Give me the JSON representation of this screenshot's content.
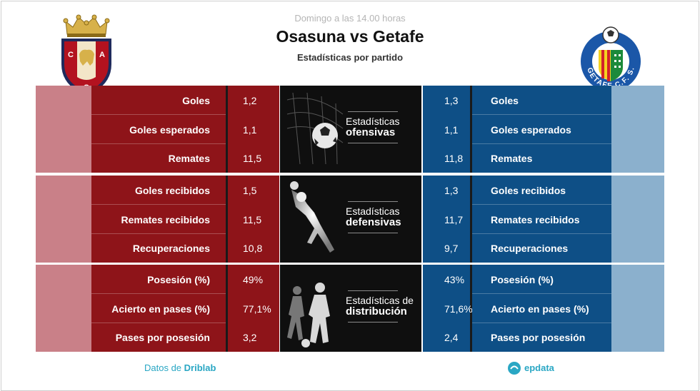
{
  "header": {
    "subtitle": "Domingo a las 14.00 horas",
    "title": "Osasuna vs Getafe",
    "description": "Estadísticas por partido"
  },
  "teams": {
    "home": {
      "name": "Osasuna",
      "color": "#8e1419",
      "logo_letters": [
        "C",
        "A",
        "O"
      ]
    },
    "away": {
      "name": "Getafe",
      "color": "#0e4f86",
      "logo_text": "GETAFE C.F. S.A.D."
    }
  },
  "blocks": [
    {
      "label_line1": "Estadísticas",
      "label_line2": "ofensivas",
      "rows": [
        {
          "label": "Goles",
          "home": "1,2",
          "away": "1,3"
        },
        {
          "label": "Goles esperados",
          "home": "1,1",
          "away": "1,1"
        },
        {
          "label": "Remates",
          "home": "11,5",
          "away": "11,8"
        }
      ]
    },
    {
      "label_line1": "Estadísticas",
      "label_line2": "defensivas",
      "rows": [
        {
          "label": "Goles recibidos",
          "home": "1,5",
          "away": "1,3"
        },
        {
          "label": "Remates recibidos",
          "home": "11,5",
          "away": "11,7"
        },
        {
          "label": "Recuperaciones",
          "home": "10,8",
          "away": "9,7"
        }
      ]
    },
    {
      "label_line1": "Estadísticas de",
      "label_line2": "distribución",
      "rows": [
        {
          "label": "Posesión (%)",
          "home": "49%",
          "away": "43%"
        },
        {
          "label": "Acierto en pases (%)",
          "home": "77,1%",
          "away": "71,6%"
        },
        {
          "label": "Pases por posesión",
          "home": "3,2",
          "away": "2,4"
        }
      ]
    }
  ],
  "footer": {
    "source_prefix": "Datos de",
    "source_name": "Driblab",
    "brand": "epdata"
  }
}
